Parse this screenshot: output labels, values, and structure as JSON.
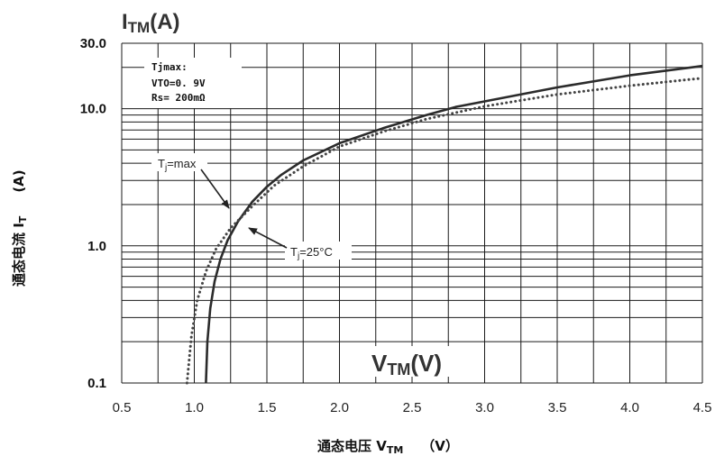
{
  "chart_data": {
    "type": "line",
    "title": "ITM(A)",
    "title_main": "I",
    "title_sub": "TM",
    "title_unit": "(A)",
    "xlabel_inner_main": "V",
    "xlabel_inner_sub": "TM",
    "xlabel_inner_unit": "(V)",
    "xlabel": "通态电压 VTM （V）",
    "xlabel_text": "通态电压 V",
    "xlabel_sub": "TM",
    "xlabel_unit": "（V）",
    "ylabel": "通态电流 IT (A)",
    "ylabel_text": "通态电流 I",
    "ylabel_sub": "T",
    "ylabel_unit": "(A)",
    "xlim": [
      0.5,
      4.5
    ],
    "ylim": [
      0.1,
      30.0
    ],
    "yscale": "log",
    "grid": true,
    "x_ticks": [
      "0.5",
      "1.0",
      "1.5",
      "2.0",
      "2.5",
      "3.0",
      "3.5",
      "4.0",
      "4.5"
    ],
    "y_ticks": [
      {
        "label": "0.1",
        "value": 0.1
      },
      {
        "label": "1.0",
        "value": 1.0
      },
      {
        "label": "10.0",
        "value": 10.0
      },
      {
        "label": "30.0",
        "value": 30.0
      }
    ],
    "notes": [
      "Tjmax:",
      "VTO=0. 9V",
      "Rs= 200mΩ"
    ],
    "series": [
      {
        "name": "Tj=25°C",
        "style": "solid",
        "color": "#2b2b2b",
        "x": [
          1.08,
          1.09,
          1.11,
          1.14,
          1.18,
          1.23,
          1.3,
          1.4,
          1.5,
          1.6,
          1.75,
          2.0,
          2.3,
          2.6,
          2.8,
          3.0,
          3.5,
          4.0,
          4.5
        ],
        "y": [
          0.1,
          0.2,
          0.35,
          0.55,
          0.8,
          1.1,
          1.5,
          2.1,
          2.7,
          3.3,
          4.2,
          5.6,
          7.2,
          9.0,
          10.3,
          11.3,
          14.3,
          17.5,
          20.5
        ]
      },
      {
        "name": "Tj=max",
        "style": "dotted",
        "color": "#444444",
        "x": [
          0.95,
          0.98,
          1.02,
          1.08,
          1.15,
          1.25,
          1.4,
          1.55,
          1.75,
          2.0,
          2.3,
          2.6,
          3.0,
          3.5,
          4.0,
          4.5
        ],
        "y": [
          0.1,
          0.22,
          0.4,
          0.65,
          0.95,
          1.35,
          1.95,
          2.75,
          3.8,
          5.3,
          6.8,
          8.4,
          10.4,
          12.7,
          14.7,
          16.7
        ]
      }
    ],
    "annotations": [
      {
        "label_main": "T",
        "label_sub": "j",
        "label_rest": "=max"
      },
      {
        "label_main": "T",
        "label_sub": "j",
        "label_rest": "=25°C"
      }
    ]
  }
}
